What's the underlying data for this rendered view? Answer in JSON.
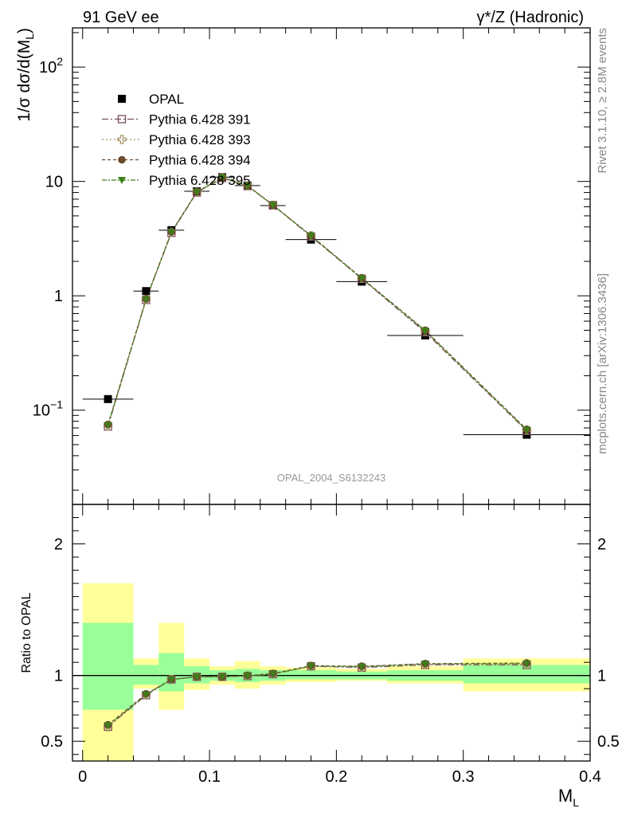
{
  "header": {
    "left": "91 GeV ee",
    "right": "γ*/Z (Hadronic)"
  },
  "side_labels": {
    "rivet": "Rivet 3.1.10, ≥ 2.8M events",
    "mcplots": "mcplots.cern.ch [arXiv:1306.3436]"
  },
  "watermark": "OPAL_2004_S6132243",
  "colors": {
    "data": "#000000",
    "p391": "#7b4a5a",
    "p393": "#a09060",
    "p394": "#6b4a2e",
    "p395": "#3f7f1a",
    "band_inner": "#99ff99",
    "band_outer": "#ffff99"
  },
  "chart_data": [
    {
      "type": "scatter",
      "ylabel": "1/σ dσ/d(M_L)",
      "yscale": "log",
      "ylim": [
        0.015,
        220
      ],
      "xlim": [
        -0.008,
        0.4
      ],
      "y_tick_labels": [
        "10^-1",
        "1",
        "10",
        "10^2"
      ],
      "legend_position": "top-left",
      "series": [
        {
          "name": "OPAL",
          "key": "data",
          "marker": "square-filled",
          "x": [
            0.02,
            0.05,
            0.07,
            0.09,
            0.11,
            0.13,
            0.15,
            0.18,
            0.22,
            0.27,
            0.35
          ],
          "y": [
            0.125,
            1.1,
            3.75,
            8.2,
            10.9,
            9.2,
            6.15,
            3.1,
            1.33,
            0.45,
            0.061
          ],
          "xerr": [
            0.02,
            0.01,
            0.01,
            0.01,
            0.01,
            0.01,
            0.01,
            0.02,
            0.02,
            0.03,
            0.05
          ]
        },
        {
          "name": "Pythia 6.428 391",
          "key": "p391",
          "marker": "square-open",
          "dash": "8,3,2,3",
          "x": [
            0.02,
            0.05,
            0.07,
            0.09,
            0.11,
            0.13,
            0.15,
            0.18,
            0.22,
            0.27,
            0.35
          ],
          "y": [
            0.072,
            0.92,
            3.55,
            8.0,
            10.7,
            9.1,
            6.2,
            3.3,
            1.41,
            0.48,
            0.066
          ]
        },
        {
          "name": "Pythia 6.428 393",
          "key": "p393",
          "marker": "cross-open",
          "dash": "2,3",
          "x": [
            0.02,
            0.05,
            0.07,
            0.09,
            0.11,
            0.13,
            0.15,
            0.18,
            0.22,
            0.27,
            0.35
          ],
          "y": [
            0.073,
            0.93,
            3.6,
            8.05,
            10.75,
            9.15,
            6.2,
            3.35,
            1.42,
            0.49,
            0.067
          ]
        },
        {
          "name": "Pythia 6.428 394",
          "key": "p394",
          "marker": "circle-filled",
          "dash": "4,3",
          "x": [
            0.02,
            0.05,
            0.07,
            0.09,
            0.11,
            0.13,
            0.15,
            0.18,
            0.22,
            0.27,
            0.35
          ],
          "y": [
            0.075,
            0.94,
            3.62,
            8.1,
            10.8,
            9.2,
            6.22,
            3.36,
            1.43,
            0.5,
            0.068
          ]
        },
        {
          "name": "Pythia 6.428 395",
          "key": "p395",
          "marker": "triangle-down",
          "dash": "6,2,2,2",
          "x": [
            0.02,
            0.05,
            0.07,
            0.09,
            0.11,
            0.13,
            0.15,
            0.18,
            0.22,
            0.27,
            0.35
          ],
          "y": [
            0.074,
            0.93,
            3.6,
            8.08,
            10.78,
            9.18,
            6.21,
            3.35,
            1.42,
            0.495,
            0.067
          ]
        }
      ]
    },
    {
      "type": "scatter",
      "ylabel": "Ratio to OPAL",
      "xlabel": "M_L",
      "ylim": [
        0.35,
        2.3
      ],
      "xlim": [
        -0.008,
        0.4
      ],
      "x_tick_labels": [
        "0",
        "0.1",
        "0.2",
        "0.3",
        "0.4"
      ],
      "y_tick_labels": [
        "0.5",
        "1",
        "2"
      ],
      "reference_line": 1.0,
      "bands": [
        {
          "x0": 0.0,
          "x1": 0.04,
          "outer": [
            0.35,
            1.7
          ],
          "inner": [
            0.74,
            1.4
          ]
        },
        {
          "x0": 0.04,
          "x1": 0.06,
          "outer": [
            0.9,
            1.13
          ],
          "inner": [
            0.93,
            1.08
          ]
        },
        {
          "x0": 0.06,
          "x1": 0.08,
          "outer": [
            0.74,
            1.4
          ],
          "inner": [
            0.88,
            1.17
          ]
        },
        {
          "x0": 0.08,
          "x1": 0.1,
          "outer": [
            0.89,
            1.13
          ],
          "inner": [
            0.94,
            1.07
          ]
        },
        {
          "x0": 0.1,
          "x1": 0.12,
          "outer": [
            0.93,
            1.07
          ],
          "inner": [
            0.96,
            1.04
          ]
        },
        {
          "x0": 0.12,
          "x1": 0.14,
          "outer": [
            0.9,
            1.11
          ],
          "inner": [
            0.95,
            1.05
          ]
        },
        {
          "x0": 0.14,
          "x1": 0.16,
          "outer": [
            0.93,
            1.07
          ],
          "inner": [
            0.96,
            1.04
          ]
        },
        {
          "x0": 0.16,
          "x1": 0.2,
          "outer": [
            0.95,
            1.06
          ],
          "inner": [
            0.97,
            1.04
          ]
        },
        {
          "x0": 0.2,
          "x1": 0.24,
          "outer": [
            0.96,
            1.05
          ],
          "inner": [
            0.97,
            1.03
          ]
        },
        {
          "x0": 0.24,
          "x1": 0.3,
          "outer": [
            0.94,
            1.07
          ],
          "inner": [
            0.96,
            1.04
          ]
        },
        {
          "x0": 0.3,
          "x1": 0.4,
          "outer": [
            0.88,
            1.13
          ],
          "inner": [
            0.94,
            1.08
          ]
        }
      ],
      "series": [
        {
          "name": "Pythia 6.428 391",
          "key": "p391",
          "x": [
            0.02,
            0.05,
            0.07,
            0.09,
            0.11,
            0.13,
            0.15,
            0.18,
            0.22,
            0.27,
            0.35
          ],
          "y": [
            0.61,
            0.85,
            0.97,
            0.99,
            0.99,
            0.995,
            1.01,
            1.07,
            1.06,
            1.08,
            1.08
          ]
        },
        {
          "name": "Pythia 6.428 393",
          "key": "p393",
          "x": [
            0.02,
            0.05,
            0.07,
            0.09,
            0.11,
            0.13,
            0.15,
            0.18,
            0.22,
            0.27,
            0.35
          ],
          "y": [
            0.61,
            0.855,
            0.97,
            0.99,
            0.99,
            0.997,
            1.01,
            1.07,
            1.065,
            1.085,
            1.085
          ]
        },
        {
          "name": "Pythia 6.428 394",
          "key": "p394",
          "x": [
            0.02,
            0.05,
            0.07,
            0.09,
            0.11,
            0.13,
            0.15,
            0.18,
            0.22,
            0.27,
            0.35
          ],
          "y": [
            0.625,
            0.86,
            0.97,
            0.99,
            0.99,
            1.0,
            1.015,
            1.075,
            1.07,
            1.09,
            1.095
          ]
        },
        {
          "name": "Pythia 6.428 395",
          "key": "p395",
          "x": [
            0.02,
            0.05,
            0.07,
            0.09,
            0.11,
            0.13,
            0.15,
            0.18,
            0.22,
            0.27,
            0.35
          ],
          "y": [
            0.62,
            0.855,
            0.97,
            0.99,
            0.99,
            0.998,
            1.012,
            1.072,
            1.067,
            1.088,
            1.09
          ]
        }
      ]
    }
  ]
}
